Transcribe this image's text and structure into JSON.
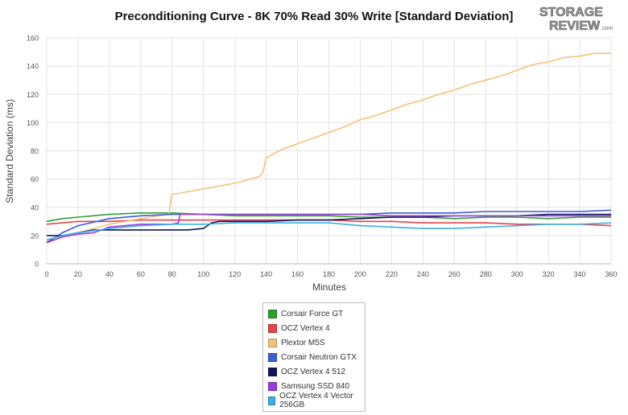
{
  "logo": {
    "line1": "STORAGE",
    "line2": "REVIEW",
    "suffix": ".com"
  },
  "chart_data": {
    "type": "line",
    "title": "Preconditioning Curve - 8K 70% Read 30% Write [Standard Deviation]",
    "xlabel": "Minutes",
    "ylabel": "Standard Deviation (ms)",
    "xlim": [
      0,
      360
    ],
    "ylim": [
      0,
      160
    ],
    "xticks": [
      0,
      20,
      40,
      60,
      80,
      100,
      120,
      140,
      160,
      180,
      200,
      220,
      240,
      260,
      280,
      300,
      320,
      340,
      360
    ],
    "yticks": [
      0,
      20,
      40,
      60,
      80,
      100,
      120,
      140,
      160
    ],
    "grid": true,
    "legend_position": "bottom",
    "series": [
      {
        "name": "Corsair Force GT",
        "color": "#2ca02c",
        "x": [
          0,
          10,
          20,
          40,
          60,
          80,
          100,
          120,
          140,
          160,
          180,
          200,
          220,
          240,
          260,
          280,
          300,
          320,
          340,
          360
        ],
        "y": [
          30,
          32,
          33,
          35,
          36,
          36,
          35,
          34,
          34,
          34,
          34,
          33,
          33,
          33,
          32,
          33,
          33,
          32,
          33,
          33
        ]
      },
      {
        "name": "OCZ Vertex 4",
        "color": "#e8434a",
        "x": [
          0,
          10,
          20,
          40,
          60,
          80,
          100,
          120,
          140,
          160,
          180,
          200,
          220,
          240,
          260,
          280,
          300,
          320,
          340,
          360
        ],
        "y": [
          28,
          29,
          30,
          30,
          31,
          31,
          31,
          31,
          31,
          31,
          31,
          30,
          30,
          29,
          29,
          29,
          28,
          28,
          28,
          27
        ]
      },
      {
        "name": "Plextor M5S",
        "color": "#f2c27a",
        "x": [
          0,
          10,
          20,
          40,
          60,
          78,
          79,
          80,
          100,
          120,
          130,
          136,
          138,
          140,
          150,
          160,
          170,
          180,
          190,
          200,
          210,
          220,
          230,
          240,
          250,
          260,
          270,
          280,
          290,
          300,
          310,
          320,
          330,
          340,
          350,
          360
        ],
        "y": [
          16,
          19,
          22,
          28,
          32,
          35,
          44,
          49,
          53,
          57,
          60,
          62,
          65,
          75,
          81,
          85,
          89,
          93,
          97,
          102,
          105,
          109,
          113,
          116,
          120,
          123,
          127,
          130,
          133,
          137,
          141,
          143,
          146,
          147,
          149,
          149
        ]
      },
      {
        "name": "Corsair Neutron GTX",
        "color": "#3b5bdb",
        "x": [
          0,
          10,
          20,
          40,
          60,
          80,
          100,
          120,
          140,
          160,
          180,
          200,
          220,
          240,
          260,
          280,
          300,
          320,
          340,
          360
        ],
        "y": [
          15,
          22,
          27,
          32,
          34,
          35,
          35,
          35,
          35,
          35,
          35,
          35,
          36,
          36,
          36,
          37,
          37,
          37,
          37,
          38
        ]
      },
      {
        "name": "OCZ Vertex 4 512",
        "color": "#14145c",
        "x": [
          0,
          10,
          20,
          30,
          40,
          50,
          60,
          70,
          80,
          90,
          100,
          105,
          110,
          120,
          140,
          160,
          180,
          200,
          220,
          240,
          260,
          280,
          300,
          320,
          340,
          360
        ],
        "y": [
          20,
          20,
          22,
          24,
          24,
          24,
          24,
          24,
          24,
          24,
          25,
          29,
          30,
          30,
          30,
          31,
          31,
          32,
          33,
          33,
          34,
          34,
          34,
          35,
          35,
          35
        ]
      },
      {
        "name": "Samsung SSD 840",
        "color": "#9a3ce0",
        "x": [
          0,
          10,
          20,
          30,
          40,
          60,
          80,
          84,
          85,
          100,
          120,
          140,
          160,
          180,
          200,
          220,
          240,
          260,
          280,
          300,
          320,
          340,
          360
        ],
        "y": [
          15,
          19,
          21,
          22,
          26,
          28,
          28,
          29,
          35,
          35,
          35,
          35,
          35,
          35,
          35,
          34,
          34,
          34,
          34,
          34,
          34,
          34,
          34
        ]
      },
      {
        "name": "OCZ Vertex 4 Vector 256GB",
        "color": "#3cb0e4",
        "x": [
          0,
          10,
          20,
          40,
          60,
          80,
          100,
          120,
          140,
          160,
          180,
          200,
          220,
          240,
          260,
          280,
          300,
          320,
          340,
          360
        ],
        "y": [
          17,
          20,
          22,
          25,
          27,
          28,
          28,
          29,
          29,
          29,
          29,
          27,
          26,
          25,
          25,
          26,
          27,
          28,
          28,
          29
        ]
      }
    ]
  }
}
